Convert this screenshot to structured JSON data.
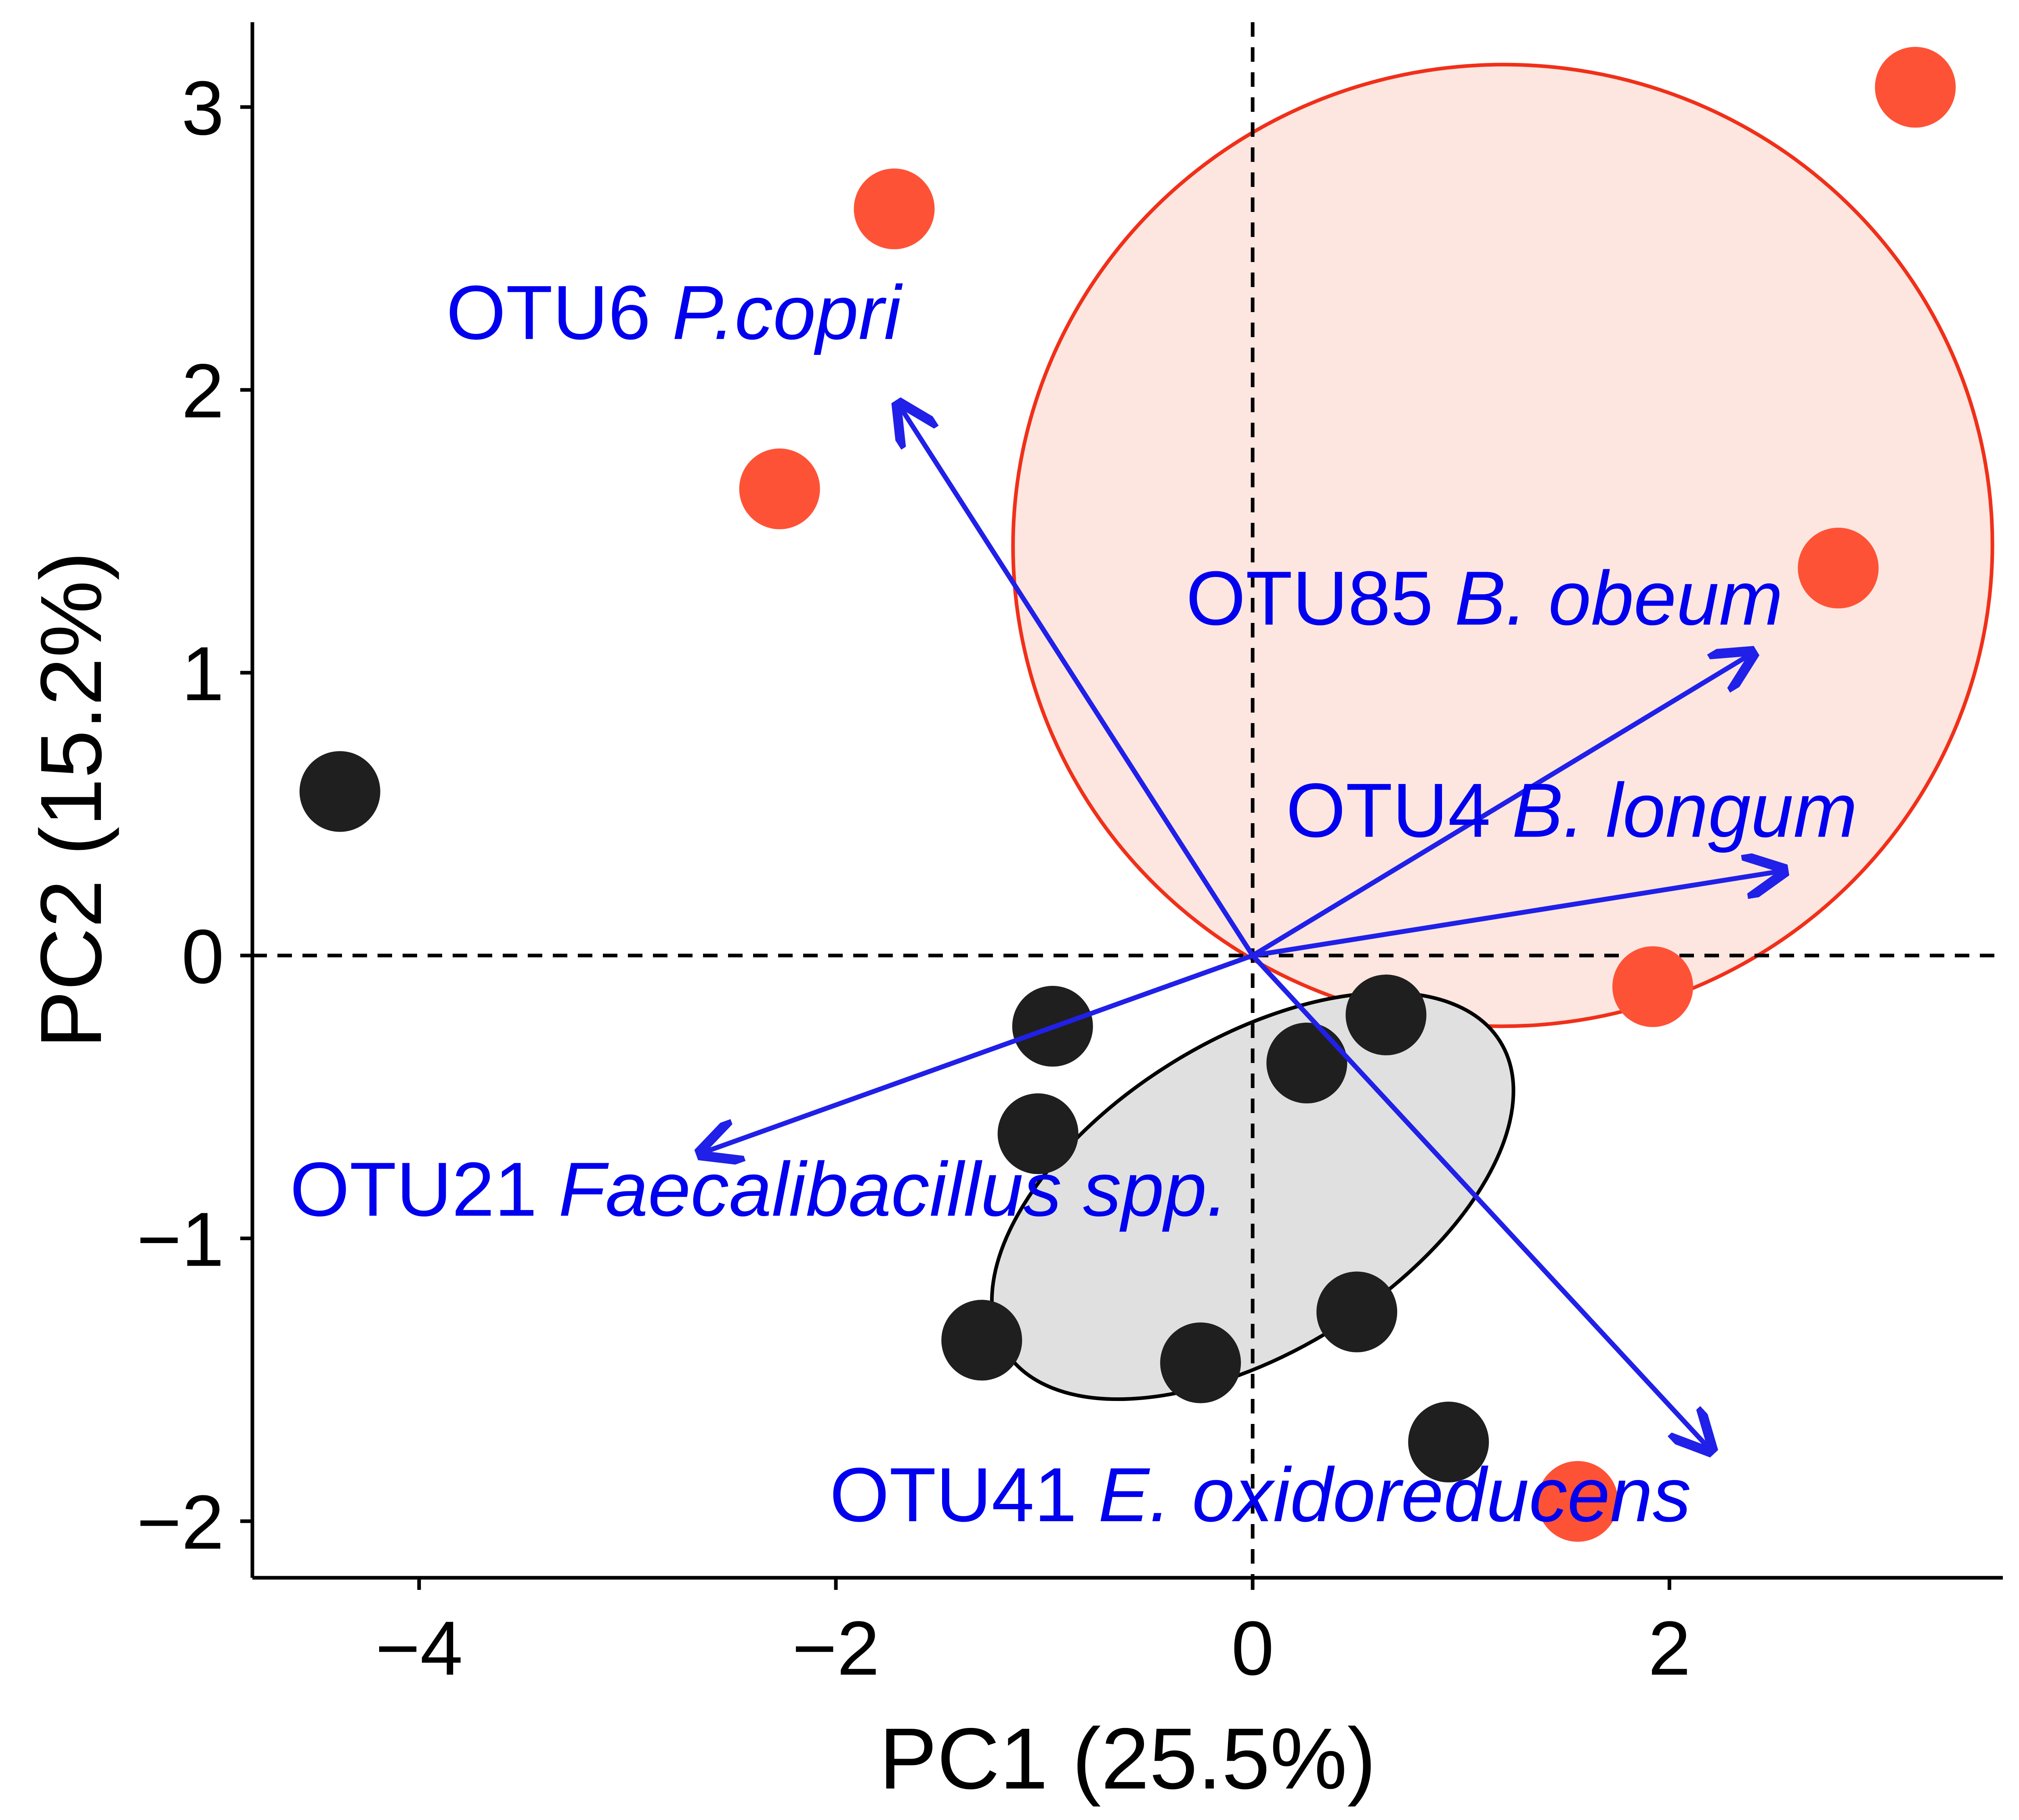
{
  "chart_data": {
    "type": "scatter",
    "xlabel": "PC1 (25.5%)",
    "ylabel": "PC2 (15.2%)",
    "xlim": [
      -4.8,
      3.6
    ],
    "ylim": [
      -2.2,
      3.3
    ],
    "x_ticks": [
      -4,
      -2,
      0,
      2
    ],
    "y_ticks": [
      -2,
      -1,
      0,
      1,
      2,
      3
    ],
    "x_tick_labels": [
      "−4",
      "−2",
      "0",
      "2"
    ],
    "y_tick_labels": [
      "−2",
      "−1",
      "0",
      "1",
      "2",
      "3"
    ],
    "grid": false,
    "reference_lines": {
      "x": 0,
      "y": 0,
      "style": "dashed"
    },
    "colors": {
      "group_a": "#fe5237",
      "group_b": "#1f1f1f",
      "arrows": "#2020e8",
      "labels": "#0000ee"
    },
    "series": [
      {
        "color": "#fe5237",
        "points": [
          {
            "x": -1.72,
            "y": 2.64
          },
          {
            "x": -2.27,
            "y": 1.65
          },
          {
            "x": 3.18,
            "y": 3.07
          },
          {
            "x": 2.81,
            "y": 1.37
          },
          {
            "x": 1.92,
            "y": -0.11
          },
          {
            "x": 1.56,
            "y": -1.93
          }
        ],
        "ellipse": {
          "cx": 1.2,
          "cy": 1.45,
          "rx": 2.35,
          "ry": 1.7,
          "angle_deg": -3,
          "fill": "#fde6df",
          "stroke": "#f0301a"
        }
      },
      {
        "color": "#1f1f1f",
        "points": [
          {
            "x": -4.38,
            "y": 0.58
          },
          {
            "x": -0.96,
            "y": -0.25
          },
          {
            "x": -1.03,
            "y": -0.63
          },
          {
            "x": 0.26,
            "y": -0.38
          },
          {
            "x": 0.64,
            "y": -0.21
          },
          {
            "x": -1.3,
            "y": -1.36
          },
          {
            "x": -0.25,
            "y": -1.44
          },
          {
            "x": 0.5,
            "y": -1.26
          },
          {
            "x": 0.94,
            "y": -1.72
          }
        ],
        "ellipse": {
          "cx": 0.0,
          "cy": -0.85,
          "rx": 1.4,
          "ry": 0.55,
          "angle_deg": -32,
          "fill": "#e0e0e0",
          "stroke": "#000000"
        }
      }
    ],
    "loadings": [
      {
        "label": "OTU6",
        "species": "P.copri",
        "x": -1.7,
        "y": 1.95,
        "label_x": -3.87,
        "label_y": 2.18
      },
      {
        "label": "OTU85",
        "species": "B. obeum",
        "x": 2.4,
        "y": 1.07,
        "label_x": -0.32,
        "label_y": 1.17
      },
      {
        "label": "OTU4",
        "species": "B. longum",
        "x": 2.55,
        "y": 0.3,
        "label_x": 0.16,
        "label_y": 0.42
      },
      {
        "label": "OTU21",
        "species": "Faecalibacillus spp.",
        "x": -2.65,
        "y": -0.7,
        "label_x": -4.62,
        "label_y": -0.92
      },
      {
        "label": "OTU41",
        "species": "E. oxidoreducens",
        "x": 2.2,
        "y": -1.75,
        "label_x": -2.03,
        "label_y": -2.0
      }
    ]
  }
}
